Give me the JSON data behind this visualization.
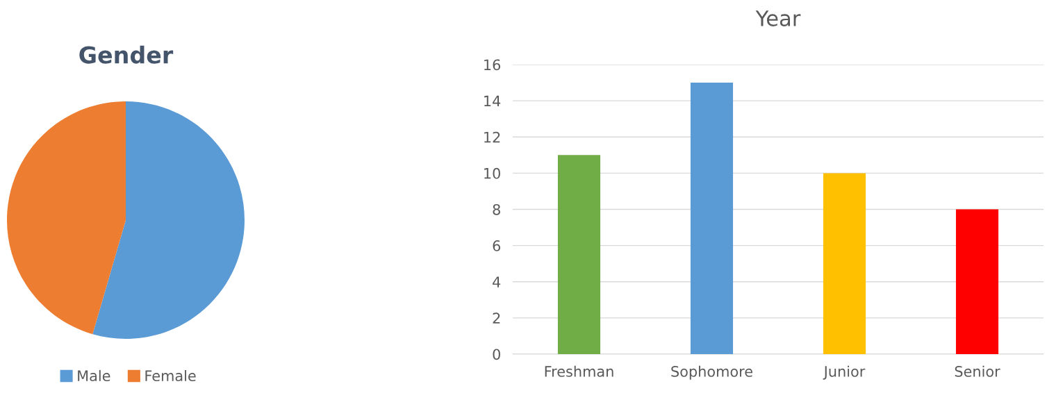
{
  "chart_data": [
    {
      "type": "pie",
      "title": "Gender",
      "categories": [
        "Male",
        "Female"
      ],
      "values": [
        54.5,
        45.5
      ],
      "colors": [
        "#5b9bd5",
        "#ed7d31"
      ],
      "legend": "bottom"
    },
    {
      "type": "bar",
      "title": "Year",
      "categories": [
        "Freshman",
        "Sophomore",
        "Junior",
        "Senior"
      ],
      "values": [
        11,
        15,
        10,
        8
      ],
      "colors": [
        "#70ad47",
        "#5b9bd5",
        "#ffc000",
        "#ff0000"
      ],
      "ylim": [
        0,
        16
      ],
      "yticks": [
        0,
        2,
        4,
        6,
        8,
        10,
        12,
        14,
        16
      ],
      "grid": "y"
    }
  ]
}
